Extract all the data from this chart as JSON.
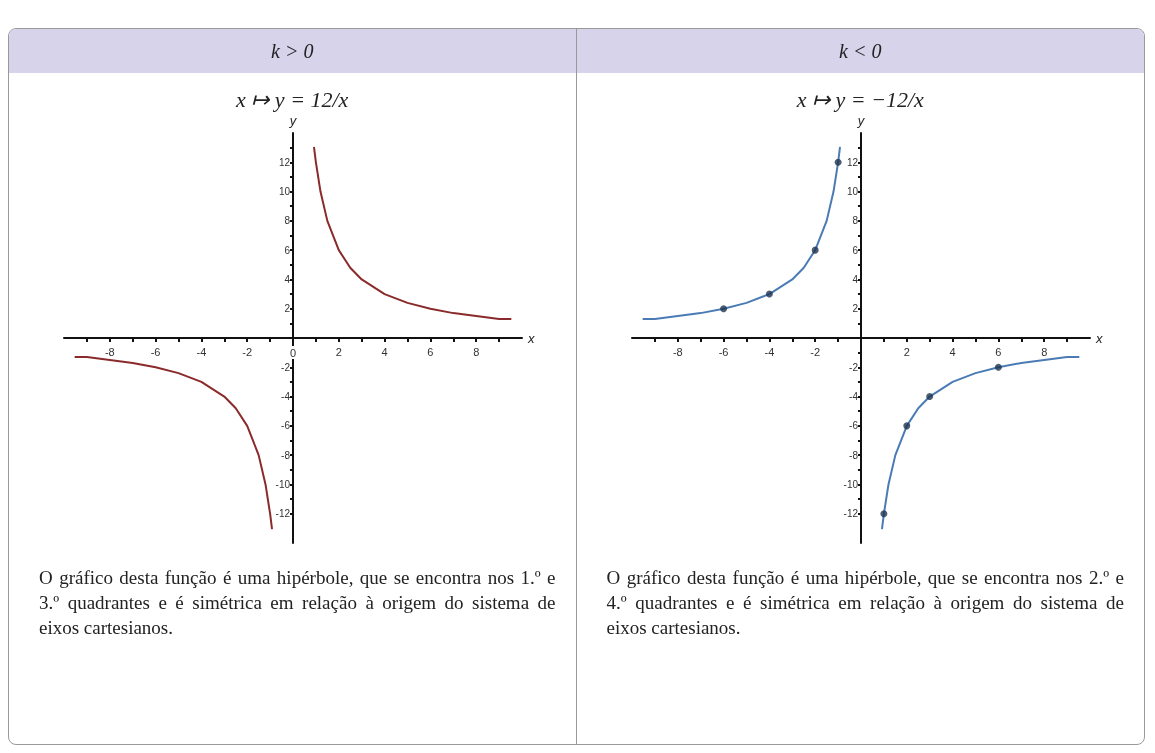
{
  "chart_data": [
    {
      "type": "line",
      "title": "k > 0",
      "subtitle": "x ↦ y = 12/x",
      "xlabel": "x",
      "ylabel": "y",
      "annotations": [
        "O gráfico desta função é uma hipérbole, que se encontra nos 1.º e 3.º quadrantes e é simétrica em relação à origem do sistema de eixos cartesianos."
      ],
      "xlim": [
        -10,
        10
      ],
      "ylim": [
        -14,
        14
      ],
      "xticks": [
        {
          "value": -9,
          "label": null
        },
        -8,
        {
          "value": -7,
          "label": null
        },
        -6,
        {
          "value": -5,
          "label": null
        },
        -4,
        {
          "value": -3,
          "label": null
        },
        -2,
        {
          "value": -1,
          "label": null
        },
        0,
        {
          "value": 1,
          "label": null
        },
        2,
        {
          "value": 3,
          "label": null
        },
        4,
        {
          "value": 5,
          "label": null
        },
        6,
        {
          "value": 7,
          "label": null
        },
        8,
        {
          "value": 9,
          "label": null
        }
      ],
      "yticks": [
        -12,
        {
          "value": -11,
          "label": null
        },
        -10,
        {
          "value": -9,
          "label": null
        },
        -8,
        {
          "value": -7,
          "label": null
        },
        -6,
        {
          "value": -5,
          "label": null
        },
        -4,
        {
          "value": -3,
          "label": null
        },
        -2,
        {
          "value": -1,
          "label": null
        },
        {
          "value": 1,
          "label": null
        },
        2,
        {
          "value": 3,
          "label": null
        },
        4,
        {
          "value": 5,
          "label": null
        },
        6,
        {
          "value": 7,
          "label": null
        },
        8,
        {
          "value": 9,
          "label": null
        },
        10,
        {
          "value": 11,
          "label": null
        },
        12,
        {
          "value": 13,
          "label": null
        }
      ],
      "series": [
        {
          "color": "#8b2a2a",
          "x": [
            0.92,
            1,
            1.2,
            1.5,
            2,
            2.5,
            3,
            4,
            5,
            6,
            7,
            8,
            9,
            9.5
          ],
          "values": [
            13,
            12,
            10,
            8,
            6,
            4.8,
            4,
            3,
            2.4,
            2,
            1.7,
            1.5,
            1.3,
            1.3
          ]
        },
        {
          "color": "#8b2a2a",
          "x": [
            -9.5,
            -9,
            -8,
            -7,
            -6,
            -5,
            -4,
            -3,
            -2.5,
            -2,
            -1.5,
            -1.2,
            -1,
            -0.92
          ],
          "values": [
            -1.3,
            -1.3,
            -1.5,
            -1.7,
            -2,
            -2.4,
            -3,
            -4,
            -4.8,
            -6,
            -8,
            -10,
            -12,
            -13
          ]
        }
      ]
    },
    {
      "type": "line",
      "title": "k < 0",
      "subtitle": "x ↦ y = −12/x",
      "xlabel": "x",
      "ylabel": "y",
      "annotations": [
        "O gráfico desta função é uma hipérbole, que se encontra nos 2.º e 4.º quadrantes e é simétrica em relação à origem do sistema de eixos cartesianos."
      ],
      "xlim": [
        -10,
        10
      ],
      "ylim": [
        -14,
        14
      ],
      "xticks": [
        {
          "value": -9,
          "label": null
        },
        -8,
        {
          "value": -7,
          "label": null
        },
        -6,
        {
          "value": -5,
          "label": null
        },
        -4,
        {
          "value": -3,
          "label": null
        },
        -2,
        {
          "value": -1,
          "label": null
        },
        {
          "value": 1,
          "label": null
        },
        2,
        {
          "value": 3,
          "label": null
        },
        4,
        {
          "value": 5,
          "label": null
        },
        6,
        {
          "value": 7,
          "label": null
        },
        8,
        {
          "value": 9,
          "label": null
        }
      ],
      "yticks": [
        -12,
        {
          "value": -11,
          "label": null
        },
        -10,
        {
          "value": -9,
          "label": null
        },
        -8,
        {
          "value": -7,
          "label": null
        },
        -6,
        {
          "value": -5,
          "label": null
        },
        -4,
        {
          "value": -3,
          "label": null
        },
        -2,
        {
          "value": -1,
          "label": null
        },
        {
          "value": 1,
          "label": null
        },
        2,
        {
          "value": 3,
          "label": null
        },
        4,
        {
          "value": 5,
          "label": null
        },
        6,
        {
          "value": 7,
          "label": null
        },
        8,
        {
          "value": 9,
          "label": null
        },
        10,
        {
          "value": 11,
          "label": null
        },
        12,
        {
          "value": 13,
          "label": null
        }
      ],
      "series": [
        {
          "color": "#4a7bb5",
          "x": [
            -9.5,
            -9,
            -8,
            -7,
            -6,
            -5,
            -4,
            -3,
            -2.5,
            -2,
            -1.5,
            -1.2,
            -1,
            -0.92
          ],
          "values": [
            1.3,
            1.3,
            1.5,
            1.7,
            2,
            2.4,
            3,
            4,
            4.8,
            6,
            8,
            10,
            12,
            13
          ]
        },
        {
          "color": "#4a7bb5",
          "x": [
            0.92,
            1,
            1.2,
            1.5,
            2,
            2.5,
            3,
            4,
            5,
            6,
            7,
            8,
            9,
            9.5
          ],
          "values": [
            -13,
            -12,
            -10,
            -8,
            -6,
            -4.8,
            -4,
            -3,
            -2.4,
            -2,
            -1.7,
            -1.5,
            -1.3,
            -1.3
          ]
        },
        {
          "type": "scatter",
          "marker": "circle",
          "color": "#1f3550",
          "x": [
            -6,
            -4,
            -2,
            -1,
            1,
            2,
            3,
            6
          ],
          "values": [
            2,
            3,
            6,
            12,
            -12,
            -6,
            -4,
            -2
          ]
        }
      ]
    }
  ]
}
